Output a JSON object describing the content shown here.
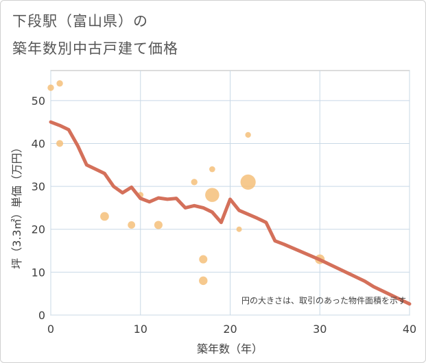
{
  "chart_data": {
    "type": "scatter",
    "title_line1": "下段駅（富山県）の",
    "title_line2": "築年数別中古戸建て価格",
    "xlabel": "築年数（年）",
    "ylabel": "坪（3.3㎡）単価（万円）",
    "xlim": [
      0,
      40
    ],
    "ylim": [
      0,
      57
    ],
    "x_ticks": [
      "0",
      "10",
      "20",
      "30",
      "40"
    ],
    "y_ticks": [
      "0",
      "10",
      "20",
      "30",
      "40",
      "50"
    ],
    "annotation": "円の大きさは、取引のあった物件面積を示す",
    "bubble_color": "#f5c07a",
    "line_color": "#d4705a",
    "points": [
      {
        "x": 0,
        "y": 53,
        "size": 1
      },
      {
        "x": 1,
        "y": 54,
        "size": 1
      },
      {
        "x": 1,
        "y": 40,
        "size": 1.2
      },
      {
        "x": 6,
        "y": 23,
        "size": 2.3
      },
      {
        "x": 9,
        "y": 21,
        "size": 1.5
      },
      {
        "x": 10,
        "y": 28,
        "size": 0.8
      },
      {
        "x": 12,
        "y": 21,
        "size": 2
      },
      {
        "x": 16,
        "y": 31,
        "size": 1
      },
      {
        "x": 17,
        "y": 13,
        "size": 2
      },
      {
        "x": 17,
        "y": 8,
        "size": 2.2
      },
      {
        "x": 18,
        "y": 34,
        "size": 0.8
      },
      {
        "x": 18,
        "y": 28,
        "size": 7.5
      },
      {
        "x": 21,
        "y": 20,
        "size": 0.6
      },
      {
        "x": 22,
        "y": 42,
        "size": 0.7
      },
      {
        "x": 22,
        "y": 31,
        "size": 9
      },
      {
        "x": 30,
        "y": 13,
        "size": 3
      }
    ],
    "trend": {
      "x": [
        0,
        1,
        2,
        3,
        4,
        5,
        6,
        7,
        8,
        9,
        10,
        11,
        12,
        13,
        14,
        15,
        16,
        17,
        18,
        19,
        20,
        21,
        22,
        23,
        24,
        25,
        26,
        27,
        28,
        29,
        30,
        31,
        32,
        33,
        34,
        35,
        36,
        37,
        38,
        39,
        40
      ],
      "y": [
        45,
        44.2,
        43.2,
        39.5,
        35,
        34,
        33,
        30,
        28.5,
        29.8,
        27.2,
        26.4,
        27.3,
        27,
        27.2,
        25,
        25.5,
        25,
        24,
        21.6,
        27,
        24.4,
        23.5,
        22.6,
        21.6,
        17.3,
        16.5,
        15.6,
        14.7,
        13.8,
        12.9,
        11.9,
        10.9,
        9.9,
        8.9,
        7.9,
        6.6,
        5.6,
        4.6,
        3.6,
        2.6
      ]
    }
  }
}
